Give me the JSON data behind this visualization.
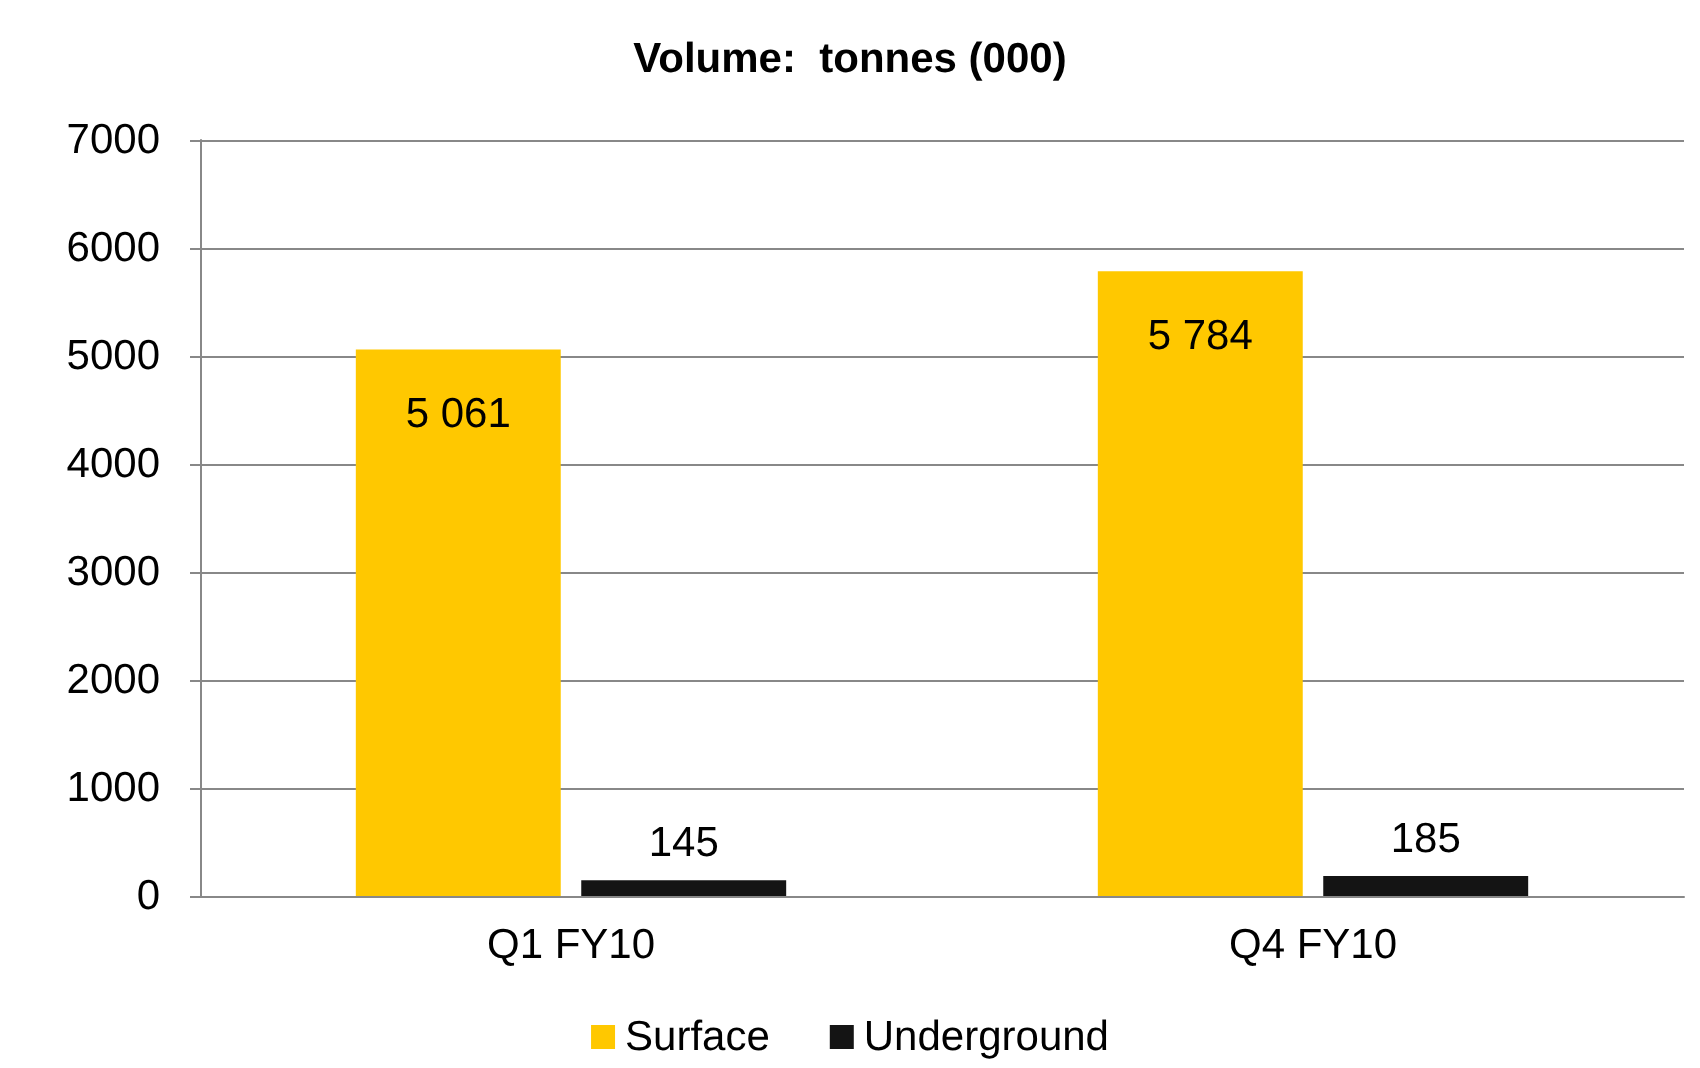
{
  "chart_data": {
    "type": "bar",
    "title": "Volume:  tonnes (000)",
    "categories": [
      "Q1 FY10",
      "Q4 FY10"
    ],
    "series": [
      {
        "name": "Surface",
        "color": "#ffc800",
        "values": [
          5061,
          5784
        ],
        "value_labels": [
          "5 061",
          "5 784"
        ]
      },
      {
        "name": "Underground",
        "color": "#141414",
        "values": [
          145,
          185
        ],
        "value_labels": [
          "145",
          "185"
        ]
      }
    ],
    "ylim": [
      0,
      7000
    ],
    "yticks": [
      0,
      1000,
      2000,
      3000,
      4000,
      5000,
      6000,
      7000
    ],
    "grid": "y",
    "legend": "bottom"
  }
}
